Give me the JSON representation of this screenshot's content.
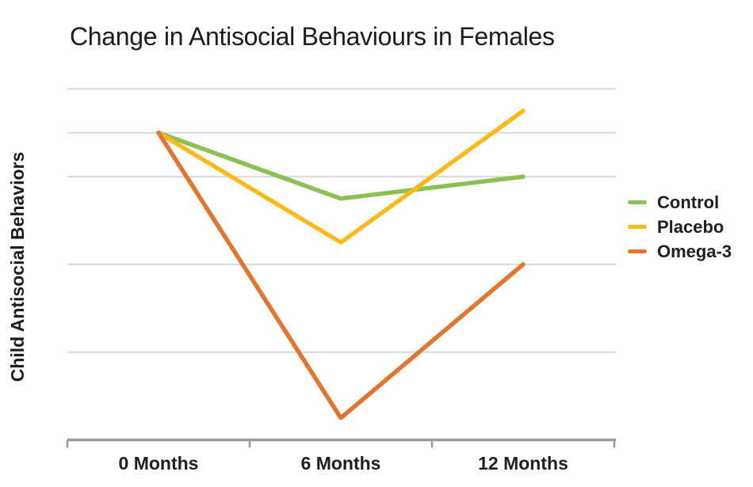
{
  "title": {
    "text": "Change in Antisocial Behaviours in Females"
  },
  "y_axis": {
    "label": "Child Antisocial Behaviors",
    "tick_labels_shown": false
  },
  "chart_data": {
    "type": "line",
    "title": "Change in Antisocial Behaviours in Females",
    "xlabel": "",
    "ylabel": "Child Antisocial Behaviors",
    "categories": [
      "0 Months",
      "6 Months",
      "12 Months"
    ],
    "series": [
      {
        "name": "Control",
        "color": "#8bc053",
        "values": [
          7,
          5.5,
          6
        ]
      },
      {
        "name": "Placebo",
        "color": "#fbba1c",
        "values": [
          7,
          4.5,
          7.5
        ]
      },
      {
        "name": "Omega-3",
        "color": "#e2752f",
        "values": [
          7,
          0.5,
          4
        ]
      }
    ],
    "ylim": [
      0,
      8.3
    ],
    "gridlines_y_units": [
      8,
      7,
      6,
      4,
      2
    ],
    "grid_on": true,
    "legend_position": "right",
    "colors": {
      "grid": "#d9d9d9",
      "axis": "#9b9b9b",
      "text": "#1d1d1d"
    }
  }
}
